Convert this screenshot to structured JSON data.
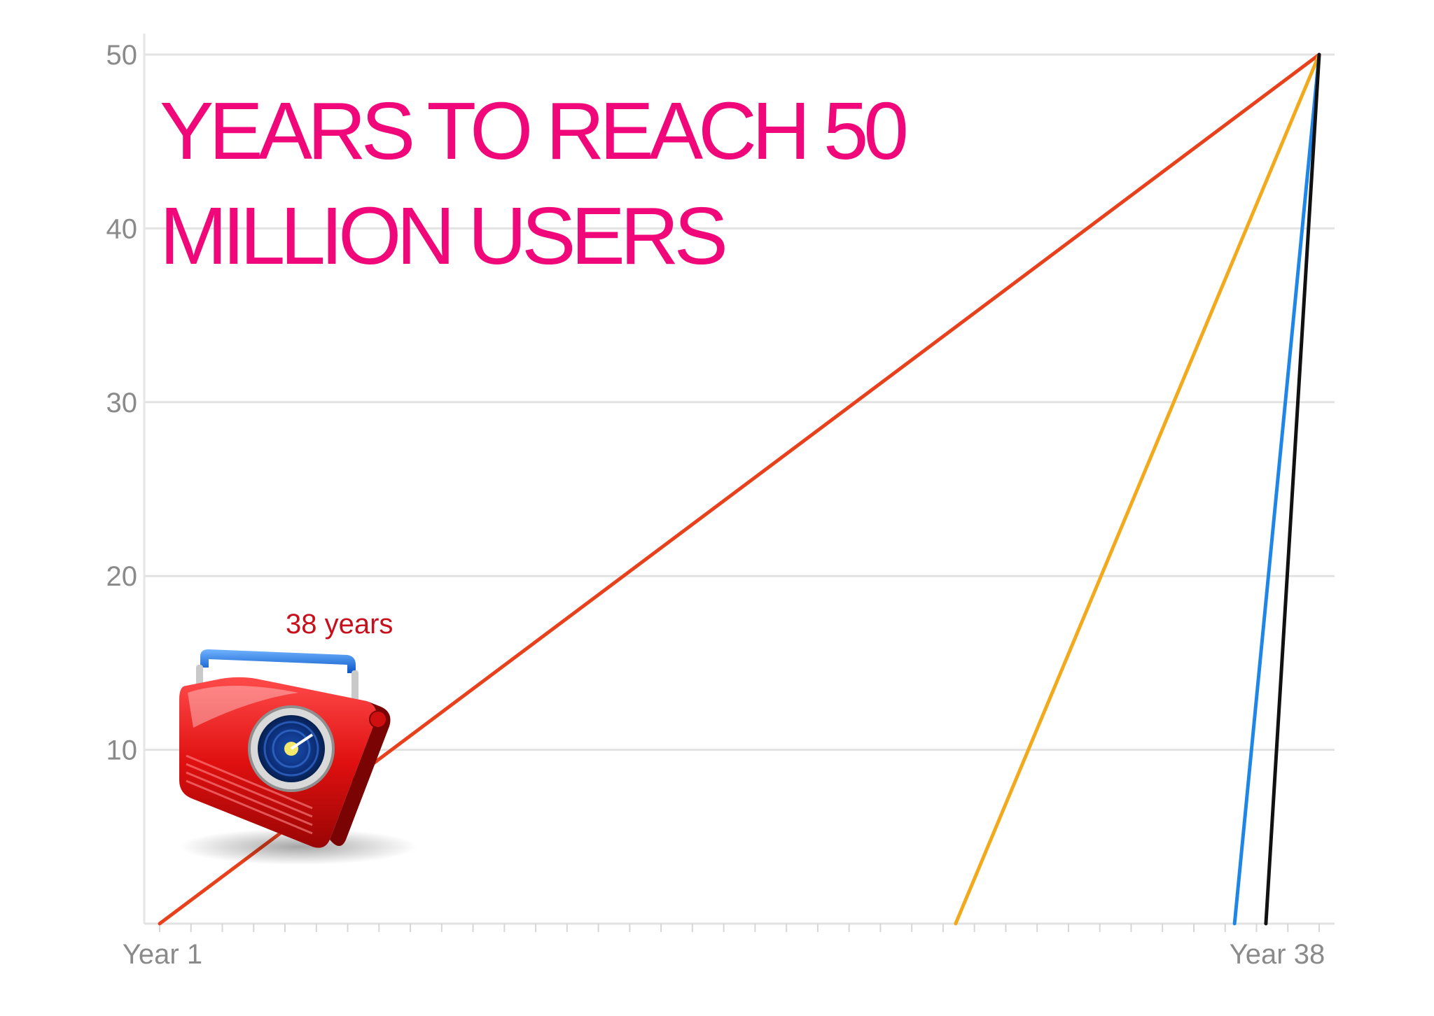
{
  "chart_data": {
    "type": "line",
    "title": "YEARS TO REACH 50 MILLION USERS",
    "title_lines": [
      "YEARS TO REACH 50",
      "MILLION USERS"
    ],
    "xlabel": "",
    "ylabel": "",
    "x_tick_labels": [
      "Year 1",
      "Year 38"
    ],
    "xlim": [
      1,
      38
    ],
    "ylim": [
      0,
      50
    ],
    "y_ticks": [
      10,
      20,
      30,
      40,
      50
    ],
    "grid": true,
    "series": [
      {
        "color": "#e8401c",
        "x": [
          1,
          38
        ],
        "y": [
          0,
          50
        ]
      },
      {
        "color": "#f2a91c",
        "x": [
          26.4,
          38
        ],
        "y": [
          0,
          50
        ]
      },
      {
        "color": "#1f86e8",
        "x": [
          35.3,
          38
        ],
        "y": [
          0,
          50
        ]
      },
      {
        "color": "#111111",
        "x": [
          36.3,
          38
        ],
        "y": [
          0,
          50
        ]
      }
    ],
    "annotations": [
      {
        "text": "38 years",
        "color": "#c7101c",
        "icon": "radio-icon"
      }
    ]
  }
}
